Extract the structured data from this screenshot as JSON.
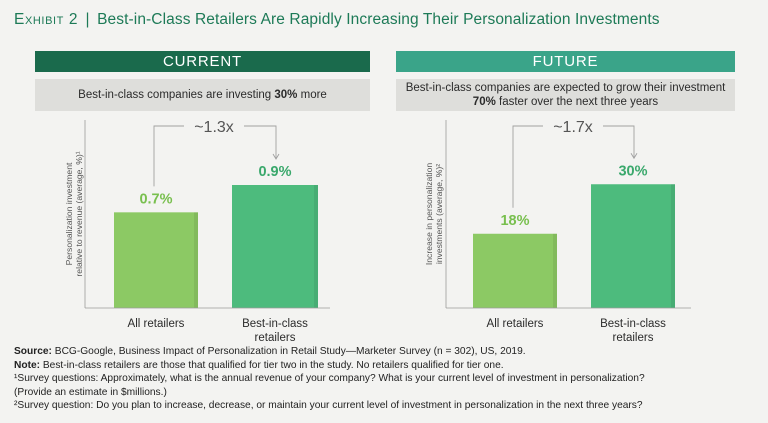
{
  "title": {
    "exhibit": "Exhibit 2",
    "separator": "|",
    "text": "Best-in-Class Retailers Are Rapidly Increasing Their Personalization Investments"
  },
  "colors": {
    "current_header": "#1a6a4c",
    "future_header": "#3aa489",
    "bar_light": "#8cc964",
    "bar_dark": "#4dbb7d",
    "label_light": "#78bf4e",
    "label_dark": "#3aa86c"
  },
  "panels": {
    "current": {
      "header": "CURRENT",
      "subtitle_pre": "Best-in-class companies are investing ",
      "subtitle_bold": "30%",
      "subtitle_post": " more"
    },
    "future": {
      "header": "FUTURE",
      "subtitle_line1": "Best-in-class companies are expected to grow their investment",
      "subtitle_bold": "70%",
      "subtitle_post": " faster over the next three years"
    }
  },
  "chart_data": [
    {
      "type": "bar",
      "panel": "current",
      "categories": [
        "All retailers",
        "Best-in-class\nretailers"
      ],
      "values": [
        0.7,
        0.9
      ],
      "value_labels": [
        "0.7%",
        "0.9%"
      ],
      "ylabel": "Personalization investment relative to revenue (average, %)¹",
      "ylim": [
        0,
        1.2
      ],
      "annotation": "~1.3x",
      "grid": false
    },
    {
      "type": "bar",
      "panel": "future",
      "categories": [
        "All retailers",
        "Best-in-class\nretailers"
      ],
      "values": [
        18,
        30
      ],
      "value_labels": [
        "18%",
        "30%"
      ],
      "ylabel": "Increase in personalization investments (average, %)²",
      "ylim": [
        0,
        40
      ],
      "annotation": "~1.7x",
      "grid": false
    }
  ],
  "footnotes": {
    "source_label": "Source:",
    "source_text": " BCG-Google, Business Impact of Personalization in Retail Study—Marketer Survey (n = 302), US, 2019.",
    "note_label": "Note:",
    "note_text": " Best-in-class retailers are those that qualified for tier two in the study. No retailers qualified for tier one.",
    "fn1_line1": "¹Survey questions: Approximately, what is the annual revenue of your company? What is your current level of investment in personalization?",
    "fn1_line2": "(Provide an estimate in $millions.)",
    "fn2": "²Survey question: Do you plan to increase, decrease, or maintain your current level of investment in personalization in the next three years?"
  }
}
